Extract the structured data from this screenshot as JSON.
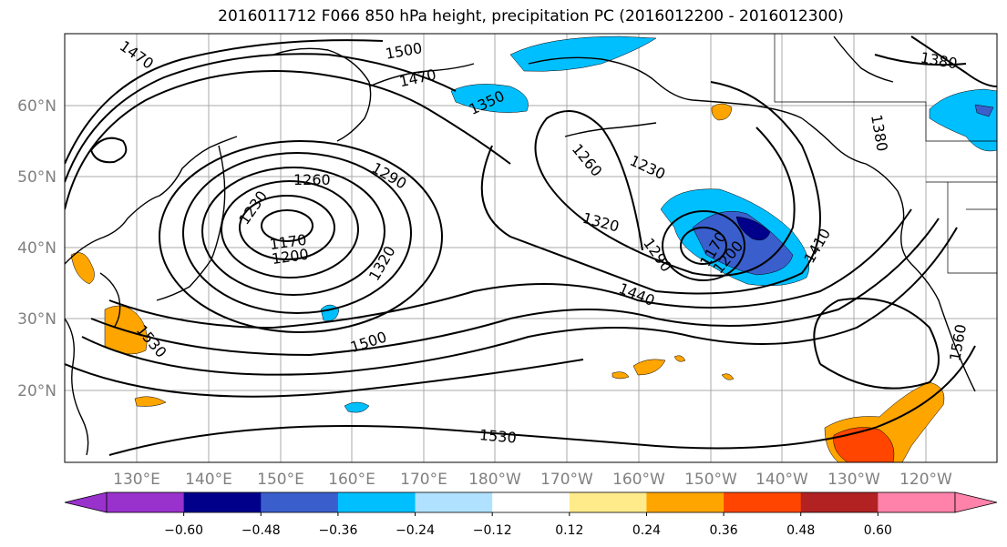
{
  "title": "2016011712 F066 850 hPa height, precipitation PC (2016012200 - 2016012300)",
  "lat_labels": [
    "60°N",
    "50°N",
    "40°N",
    "30°N",
    "20°N"
  ],
  "lon_labels": [
    "130°E",
    "140°E",
    "150°E",
    "160°E",
    "170°E",
    "180°W",
    "170°W",
    "160°W",
    "150°W",
    "140°W",
    "130°W",
    "120°W"
  ],
  "contour_labels": [
    "1470",
    "1500",
    "1470",
    "1350",
    "1380",
    "1380",
    "1260",
    "1290",
    "1230",
    "1230",
    "1260",
    "1320",
    "1290",
    "1170",
    "1200",
    "1320",
    "1410",
    "1440",
    "1170",
    "1200",
    "1500",
    "1530",
    "1560",
    "1530"
  ],
  "colorbar": {
    "tick_labels": [
      "−0.60",
      "−0.48",
      "−0.36",
      "−0.24",
      "−0.12",
      "0.12",
      "0.24",
      "0.36",
      "0.48",
      "0.60"
    ],
    "colors": [
      "#9932cc",
      "#00008b",
      "#3a5fcd",
      "#00bfff",
      "#b0e2ff",
      "#ffffff",
      "#ffeb8a",
      "#ffa500",
      "#ff4500",
      "#b22222",
      "#ff82ab"
    ]
  }
}
